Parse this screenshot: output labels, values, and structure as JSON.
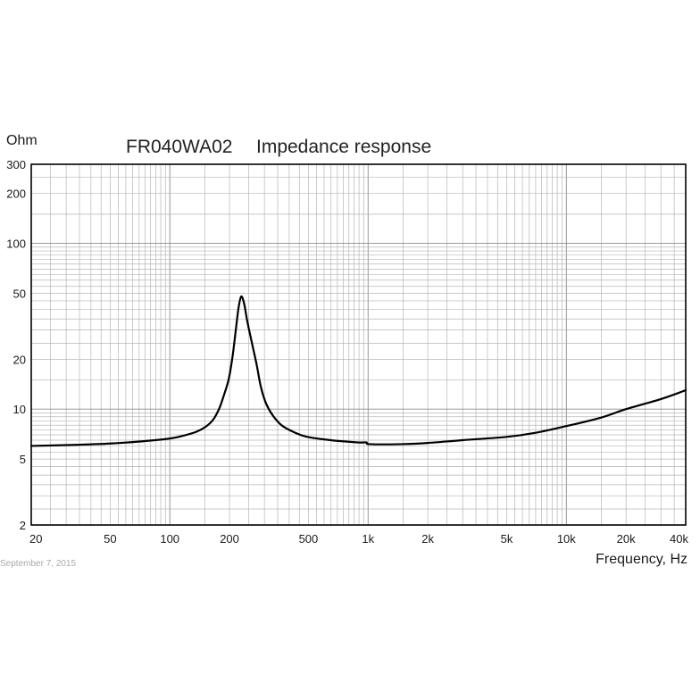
{
  "chart_data": {
    "type": "line",
    "title": "FR040WA02",
    "subtitle": "Impedance response",
    "xlabel": "Frequency, Hz",
    "ylabel": "Ohm",
    "x_scale": "log",
    "y_scale": "log",
    "xlim": [
      20,
      40000
    ],
    "ylim": [
      2,
      300
    ],
    "grid": true,
    "x_ticks": [
      {
        "value": 20,
        "label": "20"
      },
      {
        "value": 50,
        "label": "50"
      },
      {
        "value": 100,
        "label": "100"
      },
      {
        "value": 200,
        "label": "200"
      },
      {
        "value": 500,
        "label": "500"
      },
      {
        "value": 1000,
        "label": "1k"
      },
      {
        "value": 2000,
        "label": "2k"
      },
      {
        "value": 5000,
        "label": "5k"
      },
      {
        "value": 10000,
        "label": "10k"
      },
      {
        "value": 20000,
        "label": "20k"
      },
      {
        "value": 40000,
        "label": "40k"
      }
    ],
    "y_ticks": [
      {
        "value": 300,
        "label": "300"
      },
      {
        "value": 200,
        "label": "200"
      },
      {
        "value": 100,
        "label": "100"
      },
      {
        "value": 50,
        "label": "50"
      },
      {
        "value": 20,
        "label": "20"
      },
      {
        "value": 10,
        "label": "10"
      },
      {
        "value": 5,
        "label": "5"
      },
      {
        "value": 2,
        "label": "2"
      }
    ],
    "series": [
      {
        "color": "#000000",
        "x": [
          20,
          35,
          50,
          73,
          100,
          116,
          136,
          151,
          165,
          177,
          186,
          198,
          207,
          215,
          222,
          229,
          237,
          246,
          260,
          274,
          288,
          306,
          330,
          366,
          419,
          494,
          647,
          883,
          980,
          1020,
          1480,
          2000,
          3000,
          5000,
          7000,
          10000,
          15000,
          20000,
          30000,
          40000
        ],
        "y": [
          6.0,
          6.1,
          6.2,
          6.4,
          6.65,
          6.9,
          7.3,
          7.8,
          8.6,
          10.0,
          11.8,
          15.1,
          20.6,
          29.8,
          40.7,
          47.8,
          43.3,
          33.8,
          24.8,
          18.6,
          13.6,
          10.8,
          9.2,
          8.0,
          7.3,
          6.8,
          6.5,
          6.3,
          6.3,
          6.15,
          6.15,
          6.25,
          6.5,
          6.8,
          7.2,
          7.9,
          8.9,
          10.0,
          11.5,
          13.0
        ]
      }
    ]
  },
  "footer": {
    "date": "September 7, 2015"
  }
}
